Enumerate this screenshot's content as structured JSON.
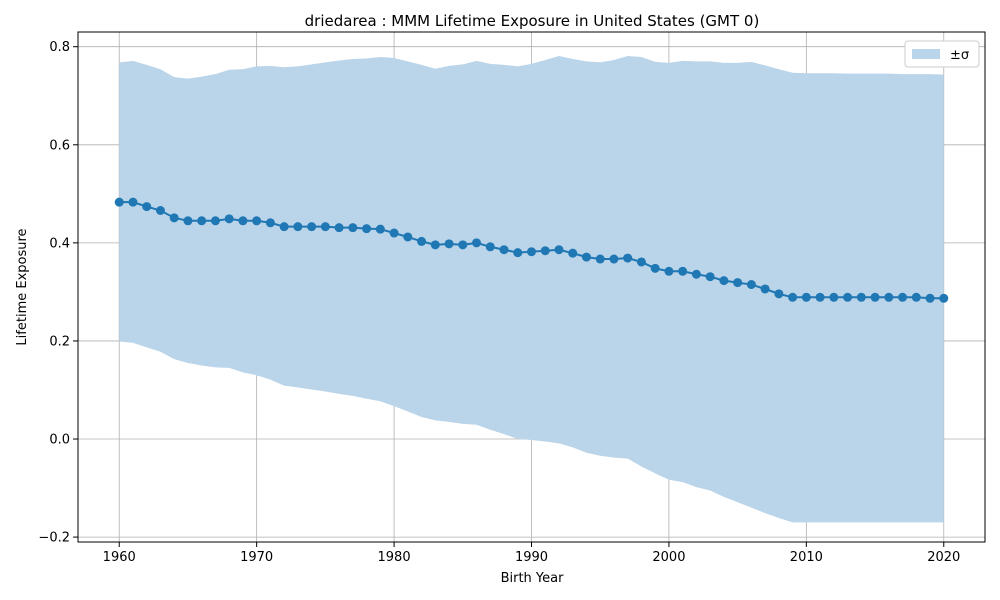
{
  "chart_data": {
    "type": "line",
    "title": "driedarea : MMM Lifetime Exposure in United States (GMT 0)",
    "xlabel": "Birth Year",
    "ylabel": "Lifetime Exposure",
    "xlim": [
      1957,
      2023
    ],
    "ylim": [
      -0.21,
      0.83
    ],
    "xticks": [
      1960,
      1970,
      1980,
      1990,
      2000,
      2010,
      2020
    ],
    "yticks": [
      -0.2,
      0.0,
      0.2,
      0.4,
      0.6,
      0.8
    ],
    "xtick_labels": [
      "1960",
      "1970",
      "1980",
      "1990",
      "2000",
      "2010",
      "2020"
    ],
    "ytick_labels": [
      "−0.2",
      "0.0",
      "0.2",
      "0.4",
      "0.6",
      "0.8"
    ],
    "grid": true,
    "legend_position": "top-right",
    "legend_label": "±σ",
    "line_color": "#1f77b4",
    "band_color": "#bad4e9",
    "x": [
      1960,
      1961,
      1962,
      1963,
      1964,
      1965,
      1966,
      1967,
      1968,
      1969,
      1970,
      1971,
      1972,
      1973,
      1974,
      1975,
      1976,
      1977,
      1978,
      1979,
      1980,
      1981,
      1982,
      1983,
      1984,
      1985,
      1986,
      1987,
      1988,
      1989,
      1990,
      1991,
      1992,
      1993,
      1994,
      1995,
      1996,
      1997,
      1998,
      1999,
      2000,
      2001,
      2002,
      2003,
      2004,
      2005,
      2006,
      2007,
      2008,
      2009,
      2010,
      2011,
      2012,
      2013,
      2014,
      2015,
      2016,
      2017,
      2018,
      2019,
      2020
    ],
    "mean": [
      0.483,
      0.483,
      0.474,
      0.466,
      0.451,
      0.445,
      0.445,
      0.445,
      0.449,
      0.445,
      0.445,
      0.441,
      0.433,
      0.433,
      0.433,
      0.433,
      0.431,
      0.431,
      0.429,
      0.428,
      0.42,
      0.412,
      0.403,
      0.396,
      0.398,
      0.396,
      0.4,
      0.392,
      0.386,
      0.38,
      0.382,
      0.384,
      0.386,
      0.379,
      0.371,
      0.367,
      0.367,
      0.369,
      0.361,
      0.348,
      0.342,
      0.342,
      0.336,
      0.331,
      0.323,
      0.319,
      0.315,
      0.306,
      0.296,
      0.289,
      0.289,
      0.289,
      0.289,
      0.289,
      0.289,
      0.289,
      0.289,
      0.289,
      0.289,
      0.287,
      0.287
    ],
    "upper": [
      0.768,
      0.771,
      0.763,
      0.754,
      0.738,
      0.735,
      0.739,
      0.744,
      0.753,
      0.754,
      0.76,
      0.761,
      0.758,
      0.76,
      0.764,
      0.768,
      0.772,
      0.775,
      0.776,
      0.779,
      0.777,
      0.77,
      0.763,
      0.755,
      0.761,
      0.764,
      0.771,
      0.765,
      0.763,
      0.76,
      0.765,
      0.773,
      0.781,
      0.775,
      0.77,
      0.768,
      0.773,
      0.781,
      0.779,
      0.769,
      0.767,
      0.771,
      0.77,
      0.77,
      0.767,
      0.767,
      0.769,
      0.762,
      0.754,
      0.747,
      0.746,
      0.746,
      0.746,
      0.745,
      0.745,
      0.745,
      0.745,
      0.744,
      0.744,
      0.744,
      0.743
    ],
    "lower": [
      0.199,
      0.196,
      0.187,
      0.178,
      0.163,
      0.155,
      0.15,
      0.146,
      0.145,
      0.136,
      0.13,
      0.121,
      0.109,
      0.105,
      0.101,
      0.097,
      0.092,
      0.088,
      0.082,
      0.077,
      0.067,
      0.056,
      0.045,
      0.038,
      0.035,
      0.031,
      0.029,
      0.019,
      0.01,
      0.0,
      -0.002,
      -0.005,
      -0.009,
      -0.017,
      -0.028,
      -0.034,
      -0.038,
      -0.04,
      -0.056,
      -0.07,
      -0.083,
      -0.088,
      -0.098,
      -0.105,
      -0.118,
      -0.129,
      -0.14,
      -0.151,
      -0.161,
      -0.17,
      -0.17,
      -0.17,
      -0.17,
      -0.17,
      -0.17,
      -0.17,
      -0.17,
      -0.17,
      -0.17,
      -0.17,
      -0.17
    ]
  }
}
